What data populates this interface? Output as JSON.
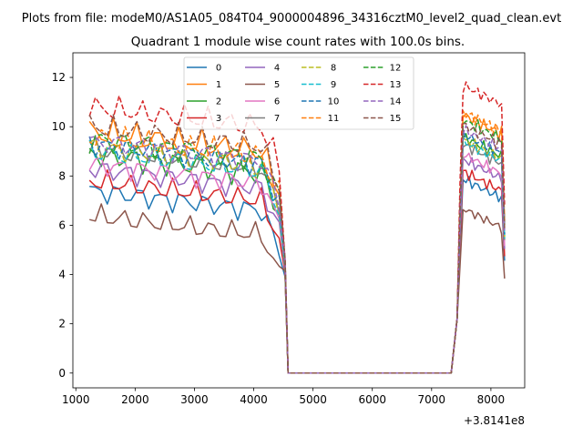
{
  "chart_data": {
    "type": "line",
    "suptitle": "Plots from file: modeM0/AS1A05_084T04_9000004896_34316cztM0_level2_quad_clean.evt",
    "title": "Quadrant 1 module wise count rates with 100.0s bins.",
    "xlabel": "",
    "ylabel": "",
    "offset_label": "+3.8141e8",
    "xlim": [
      950,
      8570
    ],
    "ylim": [
      -0.6,
      13.0
    ],
    "xticks": [
      1000,
      2000,
      3000,
      4000,
      5000,
      6000,
      7000,
      8000
    ],
    "xtick_labels": [
      "1000",
      "2000",
      "3000",
      "4000",
      "5000",
      "6000",
      "7000",
      "8000"
    ],
    "yticks": [
      0,
      2,
      4,
      6,
      8,
      10,
      12
    ],
    "ytick_labels": [
      "0",
      "2",
      "4",
      "6",
      "8",
      "10",
      "12"
    ],
    "legend_position": "upper center",
    "segments": {
      "seg1_x": [
        1230,
        1330,
        1430,
        1530,
        1630,
        1730,
        1830,
        1930,
        2030,
        2130,
        2230,
        2330,
        2430,
        2530,
        2630,
        2730,
        2830,
        2930,
        3030,
        3130,
        3230,
        3330,
        3430,
        3530,
        3630,
        3730,
        3830,
        3930,
        4030,
        4130,
        4230,
        4330,
        4430
      ],
      "drop_x": [
        4530,
        4580
      ],
      "gap_x": [
        4580,
        7330
      ],
      "seg2_x": [
        7430,
        7480,
        7530,
        7580,
        7630,
        7680,
        7730,
        7780,
        7830,
        7880,
        7930,
        7980,
        8030,
        8080,
        8130,
        8180,
        8230
      ]
    },
    "series": [
      {
        "name": "0",
        "color": "#1f77b4",
        "style": "solid",
        "level": 6.5,
        "amp": 0.35,
        "seg2_level": 7.6
      },
      {
        "name": "1",
        "color": "#ff7f0e",
        "style": "solid",
        "level": 8.9,
        "amp": 0.45,
        "seg2_level": 10.2
      },
      {
        "name": "2",
        "color": "#2ca02c",
        "style": "solid",
        "level": 8.0,
        "amp": 0.4,
        "seg2_level": 9.3
      },
      {
        "name": "3",
        "color": "#d62728",
        "style": "solid",
        "level": 6.9,
        "amp": 0.35,
        "seg2_level": 7.9
      },
      {
        "name": "4",
        "color": "#9467bd",
        "style": "solid",
        "level": 7.4,
        "amp": 0.35,
        "seg2_level": 8.4
      },
      {
        "name": "5",
        "color": "#8c564b",
        "style": "solid",
        "level": 5.5,
        "amp": 0.35,
        "seg2_level": 6.4
      },
      {
        "name": "6",
        "color": "#e377c2",
        "style": "solid",
        "level": 7.6,
        "amp": 0.35,
        "seg2_level": 8.6
      },
      {
        "name": "7",
        "color": "#7f7f7f",
        "style": "solid",
        "level": 8.2,
        "amp": 0.35,
        "seg2_level": 9.0
      },
      {
        "name": "8",
        "color": "#bcbd22",
        "style": "dashed",
        "level": 8.3,
        "amp": 0.35,
        "seg2_level": 9.2
      },
      {
        "name": "9",
        "color": "#17becf",
        "style": "dashed",
        "level": 8.1,
        "amp": 0.35,
        "seg2_level": 9.1
      },
      {
        "name": "10",
        "color": "#1f77b4",
        "style": "dashed",
        "level": 8.4,
        "amp": 0.35,
        "seg2_level": 9.4
      },
      {
        "name": "11",
        "color": "#ff7f0e",
        "style": "dashed",
        "level": 8.7,
        "amp": 0.4,
        "seg2_level": 10.3
      },
      {
        "name": "12",
        "color": "#2ca02c",
        "style": "dashed",
        "level": 8.6,
        "amp": 0.4,
        "seg2_level": 10.0
      },
      {
        "name": "13",
        "color": "#d62728",
        "style": "dashed",
        "level": 9.9,
        "amp": 0.4,
        "seg2_level": 11.4
      },
      {
        "name": "14",
        "color": "#9467bd",
        "style": "dashed",
        "level": 8.5,
        "amp": 0.35,
        "seg2_level": 9.6
      },
      {
        "name": "15",
        "color": "#8c564b",
        "style": "dashed",
        "level": 9.1,
        "amp": 0.4,
        "seg2_level": 9.8
      }
    ]
  }
}
